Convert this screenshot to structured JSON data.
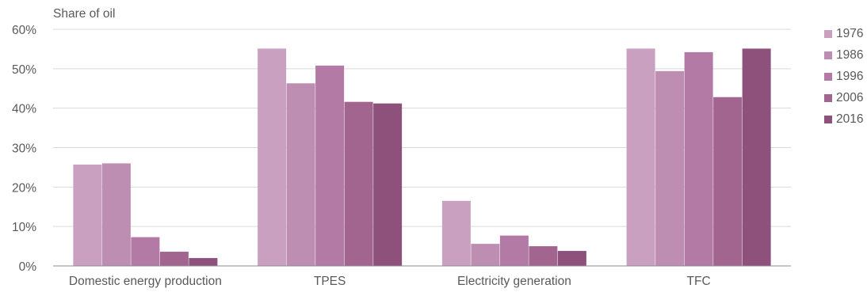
{
  "chart_data": {
    "type": "bar",
    "title": "",
    "ylabel": "Share of oil",
    "xlabel": "",
    "categories": [
      "Domestic energy production",
      "TPES",
      "Electricity generation",
      "TFC"
    ],
    "series": [
      {
        "name": "1976",
        "color": "#c9a0c0",
        "values": [
          25.7,
          55.1,
          16.5,
          55.1
        ]
      },
      {
        "name": "1986",
        "color": "#bd8db2",
        "values": [
          26.0,
          46.3,
          5.6,
          49.4
        ]
      },
      {
        "name": "1996",
        "color": "#b27aa5",
        "values": [
          7.3,
          50.8,
          7.7,
          54.2
        ]
      },
      {
        "name": "2006",
        "color": "#a2658f",
        "values": [
          3.6,
          41.6,
          5.0,
          42.8
        ]
      },
      {
        "name": "2016",
        "color": "#8e517b",
        "values": [
          2.0,
          41.2,
          3.8,
          55.1
        ]
      }
    ],
    "yticks": [
      "0%",
      "10%",
      "20%",
      "30%",
      "40%",
      "50%",
      "60%"
    ],
    "ylim": [
      0,
      60
    ],
    "grid": true,
    "legend_position": "right"
  }
}
